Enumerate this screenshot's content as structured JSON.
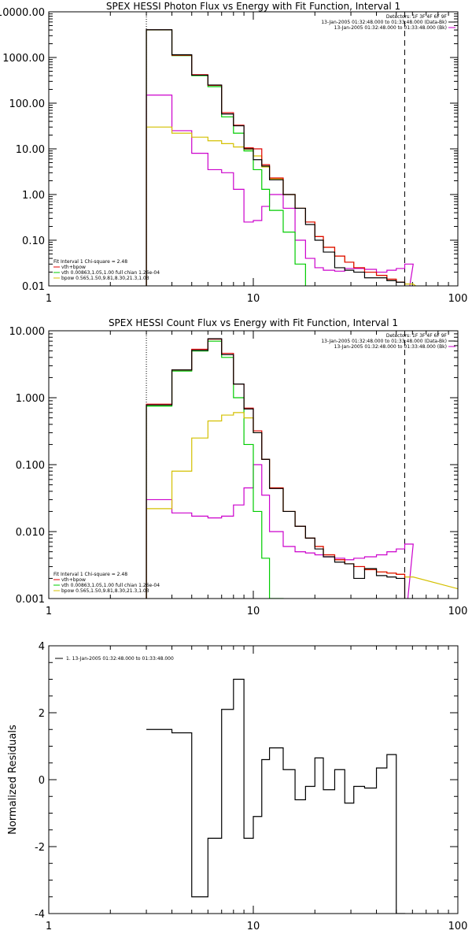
{
  "colors": {
    "data": "#000000",
    "bk": "#cc00cc",
    "sum": "#e00000",
    "vth": "#00cc00",
    "bpow": "#d4c000"
  },
  "chart_data": [
    {
      "id": "photon",
      "type": "line",
      "title": "SPEX HESSI Photon Flux vs Energy with Fit Function, Interval 1",
      "xlabel": "",
      "ylabel": "",
      "xscale": "log",
      "yscale": "log",
      "xlim": [
        1,
        100
      ],
      "ylim": [
        0.01,
        10000
      ],
      "xticks": [
        {
          "value": 1,
          "label": "1"
        },
        {
          "value": 10,
          "label": "10"
        },
        {
          "value": 100,
          "label": "100"
        }
      ],
      "yticks": [
        {
          "value": 0.01,
          "label": "0.01"
        },
        {
          "value": 0.1,
          "label": "0.10"
        },
        {
          "value": 1,
          "label": "1.00"
        },
        {
          "value": 10,
          "label": "10.00"
        },
        {
          "value": 100,
          "label": "100.00"
        },
        {
          "value": 1000,
          "label": "1000.00"
        },
        {
          "value": 10000,
          "label": "10000.00"
        }
      ],
      "vlines": [
        {
          "x": 3,
          "style": "dotted"
        },
        {
          "x": 55,
          "style": "dashed"
        }
      ],
      "legend_top": [
        {
          "text": "Detectors: 1F 3F 4F 6F 9F",
          "color": null
        },
        {
          "text": "13-Jan-2005 01:32:48.000 to 01:33:48.000 (Data-Bk)",
          "color": "data"
        },
        {
          "text": "13-Jan-2005 01:32:48.000 to 01:33:48.000 (Bk)",
          "color": "bk"
        }
      ],
      "legend_bottom": [
        {
          "text": "Fit Interval 1   Chi-square = 2.48",
          "color": null
        },
        {
          "text": "vth+bpow",
          "color": "sum"
        },
        {
          "text": "vth 0.00863,1.05,1.00  full chian 1.26e-04",
          "color": "vth"
        },
        {
          "text": "bpow 0.565,1.50,9.81,8.30,21.3,1.03",
          "color": "bpow"
        }
      ],
      "edges": [
        3,
        4,
        5,
        6,
        7,
        8,
        9,
        10,
        11,
        12,
        14,
        16,
        18,
        20,
        22,
        25,
        28,
        31,
        35,
        40,
        45,
        50,
        55
      ],
      "series": [
        {
          "key": "bk",
          "values": [
            150,
            25,
            8,
            3.5,
            3,
            1.3,
            0.25,
            0.27,
            0.55,
            1.0,
            0.5,
            0.1,
            0.04,
            0.025,
            0.022,
            0.021,
            0.024,
            0.024,
            0.023,
            0.02,
            0.022,
            0.024,
            0.03
          ]
        },
        {
          "key": "vth",
          "values": [
            4000,
            1100,
            400,
            230,
            50,
            22,
            9,
            3.5,
            1.3,
            0.45,
            0.15,
            0.03,
            0.005
          ]
        },
        {
          "key": "bpow",
          "values": [
            30,
            22,
            18,
            15,
            13,
            11,
            9.8,
            7,
            4,
            2.2,
            1.0,
            0.5,
            0.25,
            0.12,
            0.07,
            0.045,
            0.033,
            0.025,
            0.02,
            0.017,
            0.014,
            0.012,
            0.011
          ],
          "tail_x": 65
        },
        {
          "key": "sum",
          "values": [
            4030,
            1120,
            420,
            245,
            62,
            33,
            10.5,
            10,
            4.5,
            2.3,
            1.0,
            0.5,
            0.25,
            0.12,
            0.07,
            0.045,
            0.033,
            0.025,
            0.02,
            0.017,
            0.014,
            0.012
          ]
        },
        {
          "key": "data",
          "values": [
            4050,
            1150,
            410,
            250,
            58,
            32,
            10,
            5.8,
            4.2,
            2.1,
            1.0,
            0.5,
            0.22,
            0.1,
            0.055,
            0.025,
            0.022,
            0.02,
            0.015,
            0.015,
            0.013,
            0.012
          ]
        }
      ]
    },
    {
      "id": "count",
      "type": "line",
      "title": "SPEX HESSI Count Flux vs Energy with Fit Function, Interval 1",
      "xlabel": "",
      "ylabel": "",
      "xscale": "log",
      "yscale": "log",
      "xlim": [
        1,
        100
      ],
      "ylim": [
        0.001,
        10
      ],
      "xticks": [
        {
          "value": 1,
          "label": "1"
        },
        {
          "value": 10,
          "label": "10"
        },
        {
          "value": 100,
          "label": "100"
        }
      ],
      "yticks": [
        {
          "value": 0.001,
          "label": "0.001"
        },
        {
          "value": 0.01,
          "label": "0.010"
        },
        {
          "value": 0.1,
          "label": "0.100"
        },
        {
          "value": 1,
          "label": "1.000"
        },
        {
          "value": 10,
          "label": "10.000"
        }
      ],
      "vlines": [
        {
          "x": 3,
          "style": "dotted"
        },
        {
          "x": 55,
          "style": "dashed"
        }
      ],
      "legend_top": [
        {
          "text": "Detectors: 1F 3F 4F 6F 9F",
          "color": null
        },
        {
          "text": "13-Jan-2005 01:32:48.000 to 01:33:48.000 (Data-Bk)",
          "color": "data"
        },
        {
          "text": "13-Jan-2005 01:32:48.000 to 01:33:48.000 (Bk)",
          "color": "bk"
        }
      ],
      "legend_bottom": [
        {
          "text": "Fit Interval 1   Chi-square = 2.48",
          "color": null
        },
        {
          "text": "vth+bpow",
          "color": "sum"
        },
        {
          "text": "vth 0.00863,1.05,1.00  full chian 1.26e-04",
          "color": "vth"
        },
        {
          "text": "bpow 0.565,1.50,9.81,8.30,21.3,1.03",
          "color": "bpow"
        }
      ],
      "edges": [
        3,
        4,
        5,
        6,
        7,
        8,
        9,
        10,
        11,
        12,
        14,
        16,
        18,
        20,
        22,
        25,
        28,
        31,
        35,
        40,
        45,
        50,
        55
      ],
      "series": [
        {
          "key": "bk",
          "values": [
            0.03,
            0.019,
            0.017,
            0.016,
            0.017,
            0.025,
            0.045,
            0.1,
            0.035,
            0.01,
            0.006,
            0.005,
            0.0048,
            0.0045,
            0.0042,
            0.004,
            0.0038,
            0.004,
            0.0042,
            0.0045,
            0.005,
            0.0055,
            0.0065
          ]
        },
        {
          "key": "vth",
          "values": [
            0.75,
            2.5,
            5.0,
            7.0,
            4.0,
            1.0,
            0.2,
            0.02,
            0.004,
            0.001
          ]
        },
        {
          "key": "bpow",
          "values": [
            0.022,
            0.08,
            0.25,
            0.45,
            0.55,
            0.6,
            0.5,
            0.3,
            0.12,
            0.045,
            0.02,
            0.012,
            0.008,
            0.006,
            0.0045,
            0.0038,
            0.0033,
            0.003,
            0.0027,
            0.0025,
            0.0024,
            0.0023,
            0.0021
          ],
          "tail_x": 100,
          "tail_y": 0.0014
        },
        {
          "key": "sum",
          "values": [
            0.8,
            2.6,
            5.3,
            7.5,
            4.6,
            1.6,
            0.7,
            0.32,
            0.12,
            0.045,
            0.02,
            0.012,
            0.008,
            0.006,
            0.0045,
            0.0038,
            0.0033,
            0.003,
            0.0027,
            0.0025,
            0.0024,
            0.0023
          ]
        },
        {
          "key": "data",
          "values": [
            0.78,
            2.6,
            5.1,
            7.6,
            4.4,
            1.6,
            0.68,
            0.3,
            0.12,
            0.044,
            0.02,
            0.012,
            0.008,
            0.0055,
            0.0042,
            0.0035,
            0.0033,
            0.002,
            0.0028,
            0.0022,
            0.0021,
            0.002
          ]
        }
      ]
    },
    {
      "id": "residuals",
      "type": "line",
      "title": "",
      "xlabel": "",
      "ylabel": "Normalized Residuals",
      "xscale": "log",
      "yscale": "linear",
      "xlim": [
        1,
        100
      ],
      "ylim": [
        -4,
        4
      ],
      "xticks": [
        {
          "value": 1,
          "label": "1"
        },
        {
          "value": 10,
          "label": "10"
        },
        {
          "value": 100,
          "label": "100"
        }
      ],
      "yticks": [
        {
          "value": -4,
          "label": "-4"
        },
        {
          "value": -2,
          "label": "-2"
        },
        {
          "value": 0,
          "label": "0"
        },
        {
          "value": 2,
          "label": "2"
        },
        {
          "value": 4,
          "label": "4"
        }
      ],
      "legend_top": [
        {
          "text": "1. 13-Jan-2005 01:32:48.000 to 01:33:48.000",
          "color": "data"
        }
      ],
      "edges": [
        3,
        4,
        5,
        6,
        7,
        8,
        9,
        10,
        11,
        12,
        14,
        16,
        18,
        20,
        22,
        25,
        28,
        31,
        35,
        40,
        45,
        50,
        55
      ],
      "series": [
        {
          "key": "data",
          "values": [
            1.5,
            1.4,
            -3.5,
            -1.75,
            2.1,
            3.0,
            -1.75,
            -1.1,
            0.6,
            0.95,
            0.3,
            -0.6,
            -0.2,
            0.65,
            -0.3,
            0.3,
            -0.7,
            -0.2,
            -0.25,
            0.35,
            0.75,
            -4
          ]
        }
      ]
    }
  ]
}
